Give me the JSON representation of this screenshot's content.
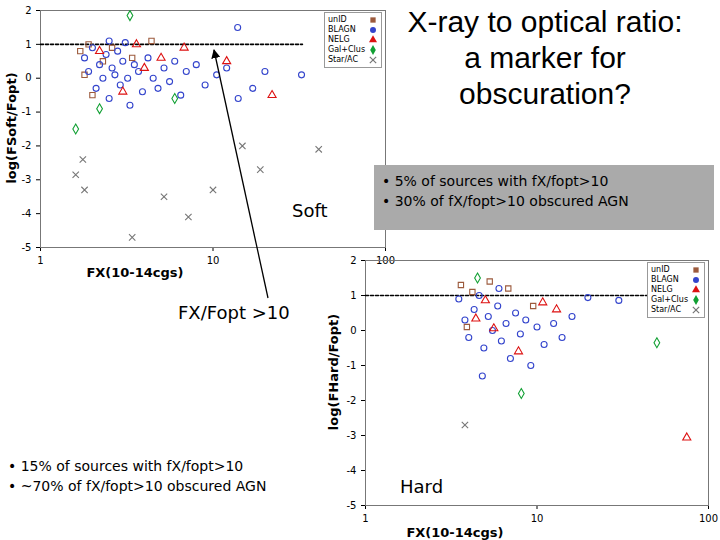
{
  "title": "X-ray to optical ratio: a marker for obscuration?",
  "arrow_label": "FX/Fopt >10",
  "chart_data": [
    {
      "type": "scatter",
      "x_label": "FX(10-14cgs)",
      "y_label": "log(FSoft/Fopt)",
      "label": "Soft",
      "log": "x",
      "xlim": [
        1,
        100
      ],
      "xticks": [
        1,
        10,
        100
      ],
      "ylim": [
        -5,
        2
      ],
      "yticks": [
        -5,
        -4,
        -3,
        -2,
        -1,
        0,
        1,
        2
      ],
      "grid": false,
      "legend": "top-right",
      "reference_line": {
        "y": 1,
        "x": [
          1,
          33
        ]
      },
      "notes": [
        "• 5% of sources with fX/fopt>10",
        "• 30% of fX/fopt>10 obscured AGN"
      ],
      "series": [
        {
          "name": "unID",
          "color": "#9c5a3c",
          "marker": "square",
          "values": [
            [
              1.7,
              0.8
            ],
            [
              1.8,
              0.1
            ],
            [
              1.9,
              1.0
            ],
            [
              2.3,
              0.5
            ],
            [
              2.6,
              0.9
            ],
            [
              3.4,
              0.6
            ],
            [
              4.4,
              1.1
            ],
            [
              2.0,
              -0.5
            ]
          ]
        },
        {
          "name": "BLAGN",
          "color": "#3344cc",
          "marker": "circle",
          "values": [
            [
              1.8,
              0.6
            ],
            [
              1.9,
              0.2
            ],
            [
              2.0,
              0.9
            ],
            [
              2.1,
              -0.3
            ],
            [
              2.2,
              0.4
            ],
            [
              2.3,
              0.0
            ],
            [
              2.4,
              0.7
            ],
            [
              2.5,
              -0.6
            ],
            [
              2.6,
              0.3
            ],
            [
              2.7,
              0.1
            ],
            [
              2.8,
              0.8
            ],
            [
              2.9,
              -0.2
            ],
            [
              3.0,
              0.5
            ],
            [
              3.2,
              0.0
            ],
            [
              3.3,
              -0.8
            ],
            [
              3.5,
              0.4
            ],
            [
              3.7,
              0.2
            ],
            [
              3.9,
              -0.4
            ],
            [
              4.2,
              0.6
            ],
            [
              4.5,
              0.0
            ],
            [
              4.8,
              -0.3
            ],
            [
              5.2,
              0.3
            ],
            [
              5.6,
              -0.1
            ],
            [
              6.0,
              0.5
            ],
            [
              6.5,
              -0.5
            ],
            [
              7.0,
              0.2
            ],
            [
              8.0,
              0.4
            ],
            [
              9.0,
              -0.2
            ],
            [
              10.5,
              0.1
            ],
            [
              12,
              0.3
            ],
            [
              14,
              -0.6
            ],
            [
              17,
              -0.3
            ],
            [
              20,
              0.2
            ],
            [
              2.5,
              1.1
            ],
            [
              3.1,
              1.05
            ],
            [
              13.9,
              1.5
            ],
            [
              32.6,
              0.1
            ]
          ]
        },
        {
          "name": "NELG",
          "color": "#dd1111",
          "marker": "triangle",
          "values": [
            [
              2.2,
              0.8
            ],
            [
              3.6,
              1.0
            ],
            [
              4.0,
              0.3
            ],
            [
              5.0,
              0.6
            ],
            [
              12,
              0.5
            ],
            [
              22,
              -0.5
            ],
            [
              3.0,
              -0.4
            ],
            [
              6.8,
              0.9
            ]
          ]
        },
        {
          "name": "Gal+Clus",
          "color": "#11a033",
          "marker": "diamond",
          "values": [
            [
              1.6,
              -1.5
            ],
            [
              3.3,
              1.85
            ],
            [
              6.0,
              -0.6
            ],
            [
              2.2,
              -0.9
            ]
          ]
        },
        {
          "name": "Star/AC",
          "color": "#777777",
          "marker": "times",
          "values": [
            [
              1.76,
              -2.4
            ],
            [
              1.8,
              -3.3
            ],
            [
              1.6,
              -2.85
            ],
            [
              5.2,
              -3.5
            ],
            [
              3.4,
              -4.7
            ],
            [
              7.2,
              -4.1
            ],
            [
              14.8,
              -2.0
            ],
            [
              10,
              -3.3
            ],
            [
              18.8,
              -2.7
            ],
            [
              41,
              -2.1
            ]
          ]
        }
      ]
    },
    {
      "type": "scatter",
      "x_label": "FX(10-14cgs)",
      "y_label": "log(FHard/Fopt)",
      "label": "Hard",
      "log": "x",
      "xlim": [
        1,
        100
      ],
      "xticks": [
        1,
        10,
        100
      ],
      "ylim": [
        -5,
        2
      ],
      "yticks": [
        -5,
        -4,
        -3,
        -2,
        -1,
        0,
        1,
        2
      ],
      "grid": false,
      "legend": "top-right",
      "reference_line": {
        "y": 1,
        "x": [
          1,
          45
        ]
      },
      "notes": [
        "• 15% of sources with fX/fopt>10",
        "• ~70% of fX/fopt>10 obscured AGN"
      ],
      "series": [
        {
          "name": "unID",
          "color": "#9c5a3c",
          "marker": "square",
          "values": [
            [
              3.6,
              1.3
            ],
            [
              4.2,
              1.1
            ],
            [
              5.3,
              1.4
            ],
            [
              6.8,
              1.2
            ],
            [
              3.9,
              0.1
            ],
            [
              9.5,
              0.7
            ]
          ]
        },
        {
          "name": "BLAGN",
          "color": "#3344cc",
          "marker": "circle",
          "values": [
            [
              3.5,
              0.9
            ],
            [
              3.8,
              0.3
            ],
            [
              4.0,
              -0.2
            ],
            [
              4.3,
              0.6
            ],
            [
              4.6,
              1.0
            ],
            [
              4.9,
              -0.5
            ],
            [
              5.2,
              0.4
            ],
            [
              5.5,
              0.0
            ],
            [
              5.9,
              0.7
            ],
            [
              6.2,
              -0.3
            ],
            [
              6.6,
              0.2
            ],
            [
              7.0,
              -0.8
            ],
            [
              7.5,
              0.5
            ],
            [
              8.0,
              -0.1
            ],
            [
              8.6,
              0.3
            ],
            [
              9.2,
              -1.0
            ],
            [
              10,
              0.1
            ],
            [
              11,
              -0.4
            ],
            [
              12.5,
              0.2
            ],
            [
              14,
              -0.2
            ],
            [
              16,
              0.4
            ],
            [
              19.8,
              0.94
            ],
            [
              30,
              0.86
            ],
            [
              4.8,
              -1.3
            ],
            [
              6.0,
              1.2
            ]
          ]
        },
        {
          "name": "NELG",
          "color": "#dd1111",
          "marker": "triangle",
          "values": [
            [
              5.0,
              0.86
            ],
            [
              4.4,
              0.34
            ],
            [
              5.6,
              0.06
            ],
            [
              10.8,
              0.8
            ],
            [
              74.7,
              -3.06
            ],
            [
              7.8,
              -0.6
            ],
            [
              13,
              0.6
            ]
          ]
        },
        {
          "name": "Gal+Clus",
          "color": "#11a033",
          "marker": "diamond",
          "values": [
            [
              8.1,
              -1.8
            ],
            [
              50,
              -0.35
            ],
            [
              4.5,
              1.5
            ]
          ]
        },
        {
          "name": "Star/AC",
          "color": "#777777",
          "marker": "times",
          "values": [
            [
              3.8,
              -2.7
            ]
          ]
        }
      ]
    }
  ]
}
